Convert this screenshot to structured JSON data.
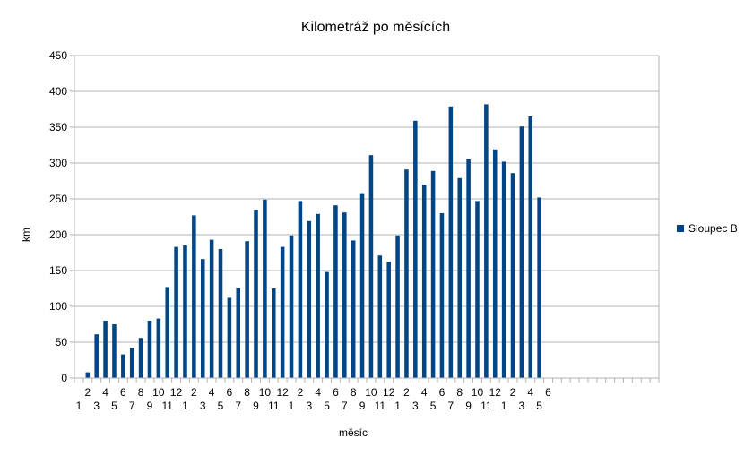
{
  "chart_data": {
    "type": "bar",
    "title": "Kilometráž po měsících",
    "xlabel": "měsíc",
    "ylabel": "km",
    "ylim": [
      0,
      450
    ],
    "yticks": [
      0,
      50,
      100,
      150,
      200,
      250,
      300,
      350,
      400,
      450
    ],
    "grid": true,
    "legend_position": "right",
    "categories": [
      "1",
      "2",
      "3",
      "4",
      "5",
      "6",
      "7",
      "8",
      "9",
      "10",
      "11",
      "12",
      "1",
      "2",
      "3",
      "4",
      "5",
      "6",
      "7",
      "8",
      "9",
      "10",
      "11",
      "12",
      "1",
      "2",
      "3",
      "4",
      "5",
      "6",
      "7",
      "8",
      "9",
      "10",
      "11",
      "12",
      "1",
      "2",
      "3",
      "4",
      "5",
      "6",
      "7",
      "8",
      "9",
      "10",
      "11",
      "12",
      "1",
      "2",
      "3",
      "4",
      "5",
      "6",
      "",
      "",
      "",
      "",
      "",
      "",
      "",
      "",
      "",
      "",
      "",
      ""
    ],
    "series": [
      {
        "name": "Sloupec B",
        "color": "#004586",
        "values": [
          0,
          8,
          61,
          80,
          75,
          33,
          42,
          56,
          80,
          83,
          127,
          183,
          185,
          227,
          166,
          193,
          180,
          112,
          126,
          191,
          235,
          249,
          125,
          183,
          199,
          247,
          219,
          229,
          148,
          241,
          231,
          192,
          258,
          311,
          171,
          162,
          199,
          291,
          359,
          270,
          289,
          230,
          379,
          279,
          305,
          247,
          382,
          319,
          302,
          286,
          351,
          365,
          252,
          null,
          null,
          null,
          null,
          null,
          null,
          null,
          null,
          null,
          null,
          null,
          null,
          null
        ]
      }
    ]
  }
}
